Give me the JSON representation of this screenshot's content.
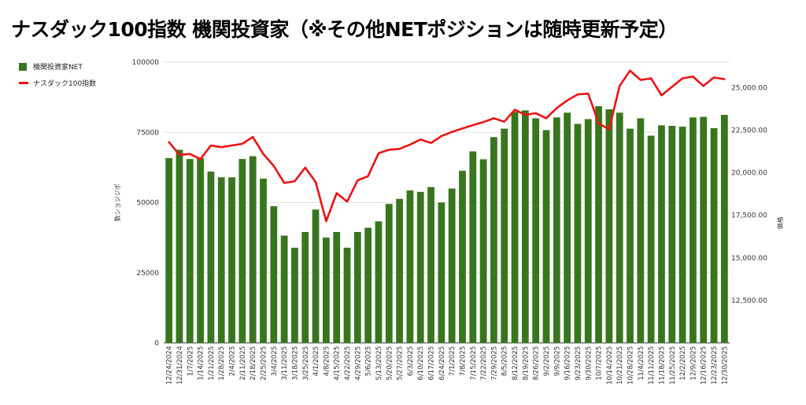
{
  "title": "ナスダック100指数 機関投資家（※その他NETポジションは随時更新予定）",
  "colors": {
    "bar": "#38761d",
    "line": "#ee1111",
    "grid": "#e3e3e3"
  },
  "chart_data": {
    "type": "bar",
    "title": "ナスダック100指数 機関投資家（※その他NETポジションは随時更新予定）",
    "legend_position": "top-left",
    "grid": true,
    "categories": [
      "12/24/2024",
      "12/31/2024",
      "1/7/2025",
      "1/14/2025",
      "1/21/2025",
      "1/28/2025",
      "2/4/2025",
      "2/11/2025",
      "2/18/2025",
      "2/25/2025",
      "3/4/2025",
      "3/11/2025",
      "3/18/2025",
      "3/25/2025",
      "4/1/2025",
      "4/8/2025",
      "4/15/2025",
      "4/22/2025",
      "4/29/2025",
      "5/6/2025",
      "5/13/2025",
      "5/20/2025",
      "5/27/2025",
      "6/3/2025",
      "6/10/2025",
      "6/17/2025",
      "6/24/2025",
      "7/1/2025",
      "7/8/2025",
      "7/15/2025",
      "7/22/2025",
      "7/29/2025",
      "8/5/2025",
      "8/12/2025",
      "8/19/2025",
      "8/26/2025",
      "9/2/2025",
      "9/9/2025",
      "9/16/2025",
      "9/23/2025",
      "9/30/2025",
      "10/7/2025",
      "10/14/2025",
      "10/21/2025",
      "10/28/2025",
      "11/4/2025",
      "11/11/2025",
      "11/18/2025",
      "11/25/2025",
      "12/2/2025",
      "12/9/2025",
      "12/16/2025",
      "12/23/2025",
      "12/30/2025"
    ],
    "y_left": {
      "label": "数ショジジポ",
      "ticks": [
        "0",
        "25000",
        "50000",
        "75000",
        "100000"
      ],
      "range": [
        0,
        100000
      ]
    },
    "y_right": {
      "label": "価格",
      "ticks": [
        "12,500.00",
        "15,000.00",
        "17,500.00",
        "20,000.00",
        "22,500.00",
        "25,000.00"
      ],
      "range": [
        10000,
        26500
      ]
    },
    "series": [
      {
        "name": "機関投資家NET",
        "type": "bar",
        "axis": "left",
        "values": [
          65800,
          68800,
          65500,
          65800,
          61000,
          59000,
          59000,
          65500,
          66500,
          58500,
          48700,
          38200,
          33900,
          39500,
          47500,
          37500,
          39500,
          33900,
          39500,
          41000,
          43300,
          49500,
          51300,
          54300,
          53800,
          55500,
          50000,
          55000,
          61300,
          68200,
          65400,
          73300,
          76300,
          82300,
          82800,
          80000,
          75800,
          80300,
          82000,
          78000,
          79700,
          84300,
          83200,
          82000,
          76300,
          80000,
          73800,
          77500,
          77300,
          77000,
          80300,
          80500,
          76500,
          81200
        ]
      },
      {
        "name": "ナスダック100指数",
        "type": "line",
        "axis": "right",
        "values": [
          21800,
          21050,
          21100,
          20800,
          21600,
          21500,
          21600,
          21700,
          22100,
          21100,
          20400,
          19400,
          19500,
          20300,
          19450,
          17150,
          18800,
          18300,
          19550,
          19800,
          21150,
          21350,
          21400,
          21650,
          21950,
          21750,
          22150,
          22400,
          22600,
          22800,
          22980,
          23200,
          23000,
          23700,
          23400,
          23500,
          23200,
          23800,
          24250,
          24600,
          24650,
          22900,
          22550,
          25100,
          26000,
          25450,
          25550,
          24550,
          25050,
          25550,
          25650,
          25100,
          25600,
          25500
        ]
      }
    ]
  }
}
